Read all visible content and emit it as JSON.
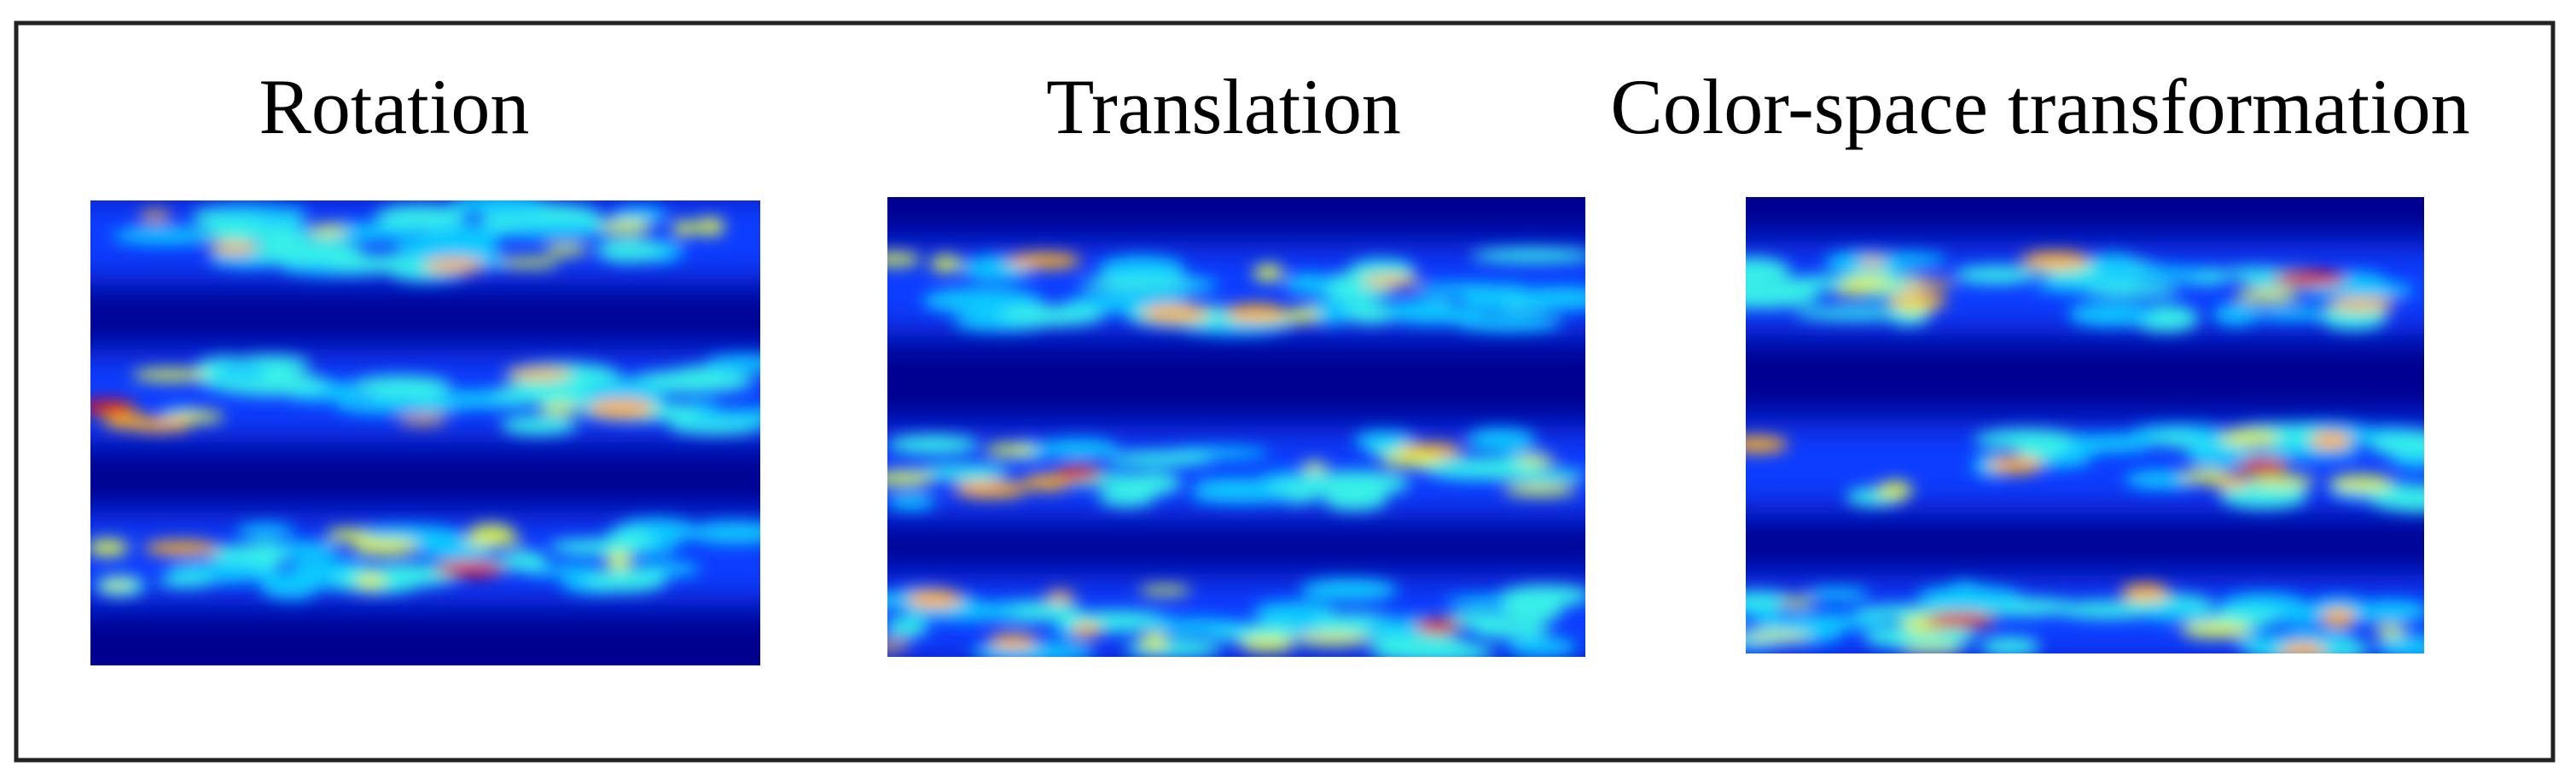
{
  "panels": [
    {
      "title": "Rotation"
    },
    {
      "title": "Translation"
    },
    {
      "title": "Color-space transformation"
    }
  ]
}
